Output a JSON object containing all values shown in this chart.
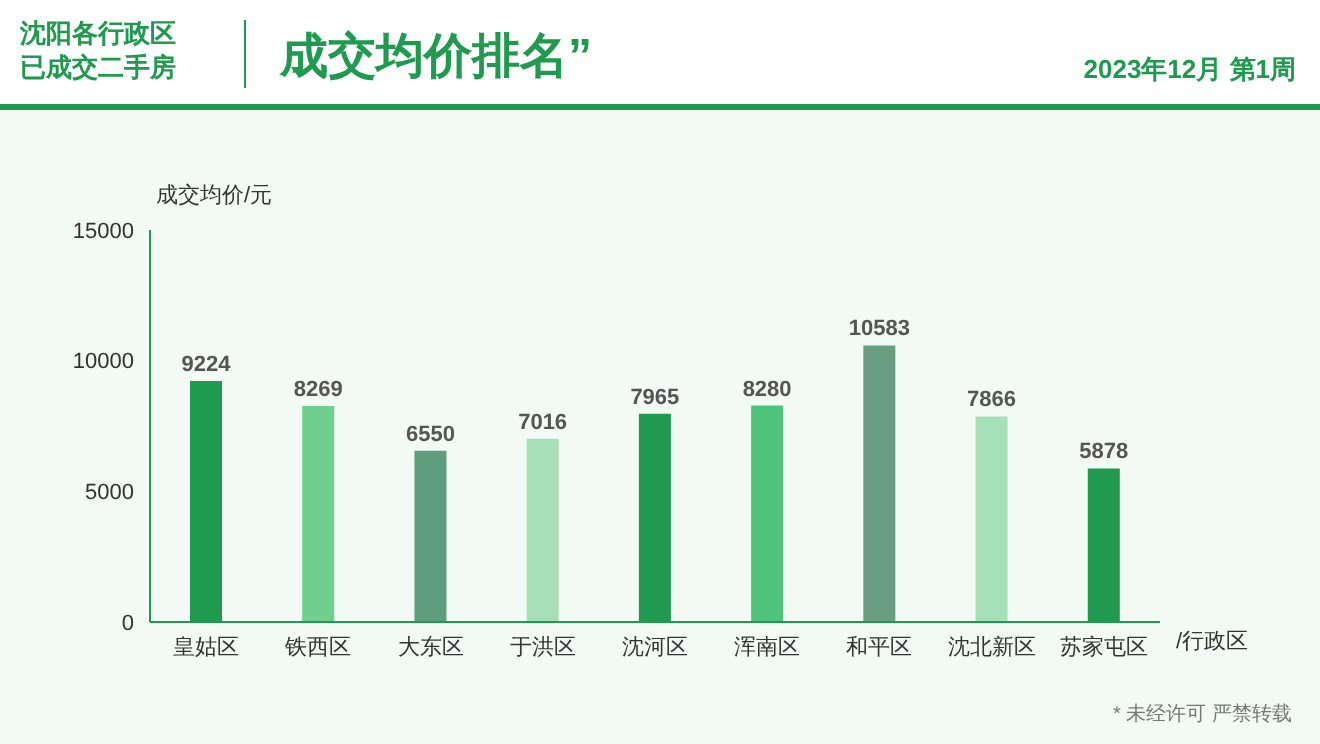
{
  "chart_data": {
    "type": "bar",
    "title": "沈阳各行政区已成交二手房",
    "subtitle": "成交均价排名”",
    "annotations": [
      "2023年12月 第1周",
      "* 未经许可 严禁转载"
    ],
    "ylabel": "成交均价/元",
    "xlabel": "/行政区",
    "categories": [
      "皇姑区",
      "铁西区",
      "大东区",
      "于洪区",
      "沈河区",
      "浑南区",
      "和平区",
      "沈北新区",
      "苏家屯区"
    ],
    "values": [
      9224,
      8269,
      6550,
      7016,
      7965,
      8280,
      10583,
      7866,
      5878
    ],
    "colors": [
      "#1f9a4e",
      "#6fcf8f",
      "#5f9e7c",
      "#a6e0b6",
      "#1f9a4e",
      "#4fc47c",
      "#6a9e80",
      "#a6e0b6",
      "#1f9a4e"
    ],
    "ylim": [
      0,
      15000
    ],
    "yticks": [
      0,
      5000,
      10000,
      15000
    ],
    "data_labels": true
  }
}
